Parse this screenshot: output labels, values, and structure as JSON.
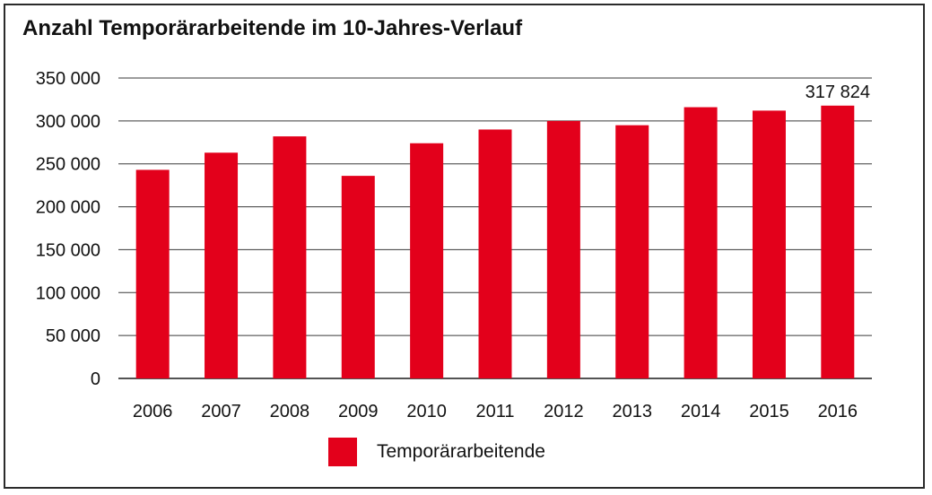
{
  "chart_data": {
    "type": "bar",
    "title": "Anzahl Temporärarbeitende im 10-Jahres-Verlauf",
    "xlabel": "",
    "ylabel": "",
    "categories": [
      "2006",
      "2007",
      "2008",
      "2009",
      "2010",
      "2011",
      "2012",
      "2013",
      "2014",
      "2015",
      "2016"
    ],
    "series": [
      {
        "name": "Temporärarbeitende",
        "values": [
          243000,
          263000,
          282000,
          236000,
          274000,
          290000,
          300000,
          295000,
          316000,
          312000,
          317824
        ]
      }
    ],
    "ylim": [
      0,
      350000
    ],
    "yticks": [
      0,
      50000,
      100000,
      150000,
      200000,
      250000,
      300000,
      350000
    ],
    "ytick_labels": [
      "0",
      "50 000",
      "100 000",
      "150 000",
      "200 000",
      "250 000",
      "300 000",
      "350 000"
    ],
    "data_labels": [
      {
        "category": "2016",
        "text": "317 824"
      }
    ],
    "grid": true,
    "legend_position": "bottom",
    "bar_color": "#e3001b"
  }
}
